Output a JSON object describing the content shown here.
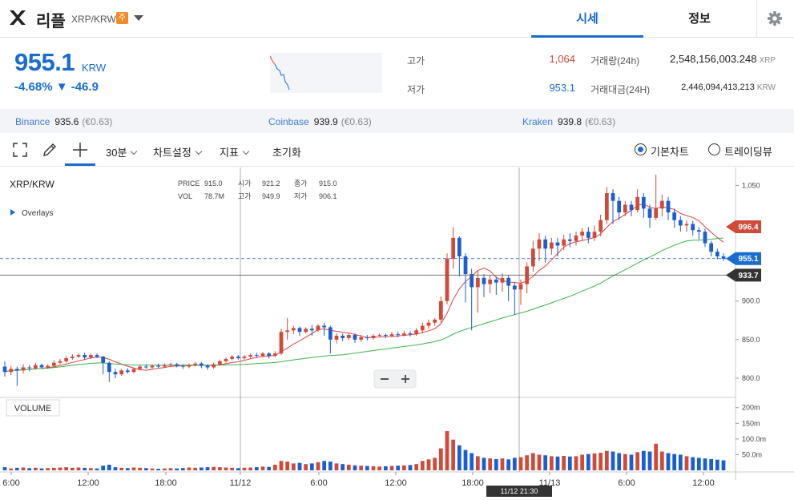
{
  "header": {
    "coin_name": "리플",
    "pair": "XRP/KRW",
    "badge": "주",
    "tabs": [
      {
        "label": "시세"
      },
      {
        "label": "정보"
      }
    ]
  },
  "price_panel": {
    "price": "955.1",
    "currency": "KRW",
    "change_pct": "-4.68%",
    "change_amt": "▼ -46.9",
    "stats": {
      "high_label": "고가",
      "high_value": "1,064",
      "low_label": "저가",
      "low_value": "953.1",
      "volume_label": "거래량(24h)",
      "volume_value": "2,548,156,003.248",
      "volume_unit": "XRP",
      "amount_label": "거래대금(24H)",
      "amount_value": "2,446,094,413,213",
      "amount_unit": "KRW"
    }
  },
  "exchanges": [
    {
      "name": "Binance",
      "price": "935.6",
      "pct": "(€0.63)"
    },
    {
      "name": "Coinbase",
      "price": "939.9",
      "pct": "(€0.63)"
    },
    {
      "name": "Kraken",
      "price": "939.8",
      "pct": "(€0.63)"
    }
  ],
  "toolbar": {
    "interval": "30분",
    "chart_settings": "차트설정",
    "indicator": "지표",
    "reset": "초기화",
    "basic_chart": "기본차트",
    "trading_view": "트레이딩뷰"
  },
  "colors": {
    "up": "#d04a3a",
    "down": "#1a5fd0",
    "accent": "#1a6ccf",
    "ma_short": "#e04040",
    "ma_long": "#3cb34a"
  },
  "chart_data": {
    "type": "candlestick",
    "symbol": "XRP/KRW",
    "overlays_label": "Overlays",
    "volume_label": "VOLUME",
    "legend": {
      "price_label": "PRICE",
      "price": "915.0",
      "open_label": "시가",
      "open": "921.2",
      "close_label": "종가",
      "close": "915.0",
      "vol_label": "VOL",
      "vol": "78.7M",
      "high_label": "고가",
      "high": "949.9",
      "low_label": "저가",
      "low": "906.1"
    },
    "x_ticks": [
      "6:00",
      "12:00",
      "18:00",
      "11/12",
      "6:00",
      "12:00",
      "18:00",
      "11/13",
      "6:00",
      "12:00"
    ],
    "y_ticks": [
      "1,050",
      "900.0",
      "850.0",
      "800.0"
    ],
    "vol_ticks": [
      "200m",
      "150m",
      "100.0m",
      "50.0m"
    ],
    "ylim": [
      775,
      1065
    ],
    "vol_max": 230,
    "price_tags": [
      {
        "label": "996.4",
        "value": 996.4,
        "color": "#d04a3a"
      },
      {
        "label": "955.1",
        "value": 955.1,
        "color": "#1a6ccf"
      },
      {
        "label": "933.7",
        "value": 933.7,
        "color": "#333333"
      }
    ],
    "crosshair_time": "11/12 21:30",
    "candles": [
      [
        815,
        808,
        822,
        802,
        10
      ],
      [
        808,
        812,
        816,
        804,
        6
      ],
      [
        812,
        810,
        815,
        790,
        8
      ],
      [
        810,
        814,
        818,
        806,
        9
      ],
      [
        814,
        813,
        817,
        809,
        7
      ],
      [
        813,
        817,
        820,
        811,
        8
      ],
      [
        817,
        814,
        819,
        812,
        6
      ],
      [
        814,
        816,
        818,
        812,
        7
      ],
      [
        816,
        820,
        823,
        814,
        8
      ],
      [
        820,
        822,
        825,
        818,
        9
      ],
      [
        822,
        826,
        829,
        820,
        10
      ],
      [
        826,
        828,
        831,
        824,
        8
      ],
      [
        828,
        830,
        832,
        826,
        9
      ],
      [
        830,
        827,
        833,
        824,
        8
      ],
      [
        827,
        830,
        832,
        825,
        7
      ],
      [
        830,
        828,
        832,
        826,
        6
      ],
      [
        828,
        820,
        829,
        805,
        15
      ],
      [
        820,
        808,
        822,
        795,
        18
      ],
      [
        808,
        805,
        812,
        800,
        10
      ],
      [
        805,
        810,
        812,
        803,
        8
      ],
      [
        810,
        808,
        813,
        806,
        7
      ],
      [
        808,
        812,
        814,
        806,
        9
      ],
      [
        812,
        815,
        817,
        810,
        8
      ],
      [
        815,
        814,
        818,
        812,
        7
      ],
      [
        814,
        816,
        818,
        812,
        6
      ],
      [
        816,
        815,
        819,
        813,
        5
      ],
      [
        815,
        817,
        819,
        813,
        6
      ],
      [
        817,
        818,
        820,
        815,
        7
      ],
      [
        818,
        816,
        820,
        814,
        6
      ],
      [
        816,
        815,
        818,
        812,
        7
      ],
      [
        815,
        817,
        819,
        813,
        9
      ],
      [
        817,
        819,
        821,
        815,
        8
      ],
      [
        819,
        816,
        821,
        813,
        9
      ],
      [
        816,
        814,
        818,
        811,
        10
      ],
      [
        814,
        818,
        820,
        812,
        11
      ],
      [
        818,
        822,
        824,
        816,
        10
      ],
      [
        822,
        825,
        827,
        820,
        9
      ],
      [
        825,
        828,
        830,
        823,
        8
      ],
      [
        828,
        826,
        830,
        824,
        7
      ],
      [
        826,
        828,
        830,
        824,
        8
      ],
      [
        828,
        830,
        832,
        826,
        9
      ],
      [
        830,
        829,
        833,
        827,
        10
      ],
      [
        829,
        832,
        834,
        827,
        12
      ],
      [
        832,
        829,
        834,
        826,
        11
      ],
      [
        829,
        832,
        835,
        827,
        18
      ],
      [
        832,
        860,
        864,
        830,
        30
      ],
      [
        860,
        862,
        878,
        850,
        28
      ],
      [
        862,
        865,
        868,
        857,
        22
      ],
      [
        865,
        860,
        867,
        855,
        24
      ],
      [
        860,
        864,
        866,
        858,
        20
      ],
      [
        864,
        862,
        869,
        855,
        22
      ],
      [
        862,
        868,
        870,
        860,
        26
      ],
      [
        868,
        866,
        872,
        855,
        30
      ],
      [
        866,
        850,
        868,
        832,
        28
      ],
      [
        850,
        855,
        858,
        845,
        22
      ],
      [
        855,
        852,
        858,
        848,
        20
      ],
      [
        852,
        856,
        858,
        849,
        18
      ],
      [
        856,
        850,
        858,
        846,
        16
      ],
      [
        850,
        853,
        856,
        847,
        15
      ],
      [
        853,
        852,
        856,
        849,
        14
      ],
      [
        852,
        855,
        857,
        850,
        13
      ],
      [
        855,
        856,
        858,
        853,
        12
      ],
      [
        856,
        855,
        858,
        852,
        13
      ],
      [
        855,
        857,
        860,
        853,
        14
      ],
      [
        857,
        856,
        860,
        853,
        15
      ],
      [
        856,
        858,
        861,
        854,
        16
      ],
      [
        858,
        857,
        861,
        854,
        17
      ],
      [
        857,
        862,
        865,
        855,
        20
      ],
      [
        862,
        868,
        872,
        858,
        30
      ],
      [
        868,
        872,
        876,
        864,
        35
      ],
      [
        872,
        876,
        878,
        868,
        40
      ],
      [
        876,
        900,
        906,
        872,
        70
      ],
      [
        900,
        955,
        962,
        896,
        125
      ],
      [
        955,
        982,
        996,
        942,
        98
      ],
      [
        982,
        958,
        984,
        932,
        80
      ],
      [
        958,
        935,
        962,
        898,
        65
      ],
      [
        935,
        918,
        942,
        862,
        55
      ],
      [
        918,
        930,
        940,
        885,
        45
      ],
      [
        930,
        922,
        935,
        905,
        40
      ],
      [
        922,
        928,
        934,
        910,
        38
      ],
      [
        928,
        924,
        932,
        908,
        36
      ],
      [
        924,
        930,
        936,
        912,
        38
      ],
      [
        930,
        920,
        934,
        900,
        35
      ],
      [
        920,
        915,
        924,
        882,
        40
      ],
      [
        915,
        922,
        928,
        895,
        42
      ],
      [
        922,
        945,
        950,
        910,
        48
      ],
      [
        945,
        968,
        978,
        938,
        55
      ],
      [
        968,
        980,
        988,
        952,
        50
      ],
      [
        980,
        968,
        985,
        950,
        48
      ],
      [
        968,
        976,
        982,
        960,
        45
      ],
      [
        976,
        972,
        982,
        958,
        44
      ],
      [
        972,
        980,
        986,
        966,
        46
      ],
      [
        980,
        978,
        988,
        970,
        44
      ],
      [
        978,
        985,
        990,
        972,
        45
      ],
      [
        985,
        990,
        995,
        978,
        50
      ],
      [
        990,
        982,
        996,
        975,
        52
      ],
      [
        982,
        990,
        998,
        978,
        54
      ],
      [
        990,
        1005,
        1012,
        984,
        56
      ],
      [
        1005,
        1040,
        1048,
        1000,
        62
      ],
      [
        1040,
        1030,
        1045,
        1000,
        60
      ],
      [
        1030,
        1015,
        1035,
        1005,
        55
      ],
      [
        1015,
        1025,
        1030,
        1010,
        52
      ],
      [
        1025,
        1018,
        1030,
        1010,
        50
      ],
      [
        1018,
        1035,
        1045,
        1015,
        58
      ],
      [
        1035,
        1020,
        1040,
        1008,
        62
      ],
      [
        1020,
        1008,
        1025,
        995,
        60
      ],
      [
        1008,
        1020,
        1064,
        1005,
        85
      ],
      [
        1020,
        1030,
        1038,
        1010,
        60
      ],
      [
        1030,
        1015,
        1035,
        1005,
        55
      ],
      [
        1015,
        1005,
        1020,
        995,
        52
      ],
      [
        1005,
        998,
        1010,
        990,
        50
      ],
      [
        998,
        1000,
        1005,
        990,
        45
      ],
      [
        1000,
        992,
        1004,
        985,
        42
      ],
      [
        992,
        990,
        996,
        980,
        40
      ],
      [
        990,
        975,
        994,
        970,
        38
      ],
      [
        975,
        964,
        978,
        958,
        36
      ],
      [
        964,
        958,
        968,
        954,
        34
      ],
      [
        958,
        955,
        962,
        952,
        32
      ]
    ]
  }
}
